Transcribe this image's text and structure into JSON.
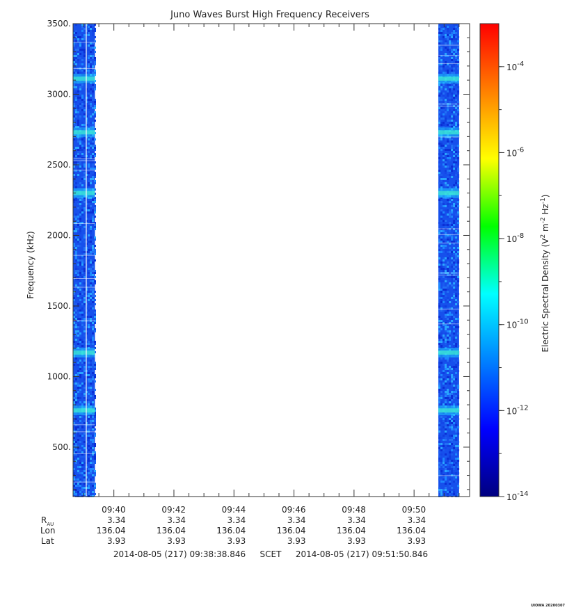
{
  "chart_data": {
    "type": "heatmap",
    "title": "Juno Waves Burst High Frequency Receivers",
    "ylabel": "Frequency (kHz)",
    "ylim": [
      150,
      3500
    ],
    "y_ticks": [
      "500.",
      "1000.",
      "1500.",
      "2000.",
      "2500.",
      "3000.",
      "3500."
    ],
    "y_tick_values": [
      500,
      1000,
      1500,
      2000,
      2500,
      3000,
      3500
    ],
    "x_ticks": [
      "09:40",
      "09:42",
      "09:44",
      "09:46",
      "09:48",
      "09:50"
    ],
    "xlim_minutes": [
      578.64,
      591.85
    ],
    "x_tick_minutes": [
      580,
      582,
      584,
      586,
      588,
      590
    ],
    "data_intervals_minutes": [
      [
        578.64,
        579.37
      ],
      [
        590.81,
        591.5
      ]
    ],
    "enhanced_bands_khz": [
      760,
      1170,
      2300,
      2730,
      3110
    ],
    "colorbar": {
      "label": "Electric Spectral Density (V",
      "label_sup1": "2",
      "label_mid": " m",
      "label_sup2": "-2",
      "label_mid2": " Hz",
      "label_sup3": "-1",
      "label_end": ")",
      "scale": "log",
      "range_exponents": [
        -14,
        -3
      ],
      "tick_base": "10",
      "tick_exponents": [
        "-4",
        "-6",
        "-8",
        "-10",
        "-12",
        "-14"
      ],
      "tick_exponent_values": [
        -4,
        -6,
        -8,
        -10,
        -12,
        -14
      ],
      "colors": [
        "#00007f",
        "#0000ff",
        "#0080ff",
        "#00ffff",
        "#00ff00",
        "#ffff00",
        "#ff8000",
        "#ff0000"
      ]
    },
    "ephemeris": {
      "row_labels": {
        "r": "R",
        "r_sub": "AU",
        "lon": "Lon",
        "lat": "Lat"
      },
      "r_values": [
        "3.34",
        "3.34",
        "3.34",
        "3.34",
        "3.34",
        "3.34"
      ],
      "lon_values": [
        "136.04",
        "136.04",
        "136.04",
        "136.04",
        "136.04",
        "136.04"
      ],
      "lat_values": [
        "3.93",
        "3.93",
        "3.93",
        "3.93",
        "3.93",
        "3.93"
      ]
    },
    "time_range": {
      "start": "2014-08-05 (217) 09:38:38.846",
      "label": "SCET",
      "end": "2014-08-05 (217) 09:51:50.846"
    }
  },
  "footer": {
    "stamp": "UIOWA 20200307"
  }
}
